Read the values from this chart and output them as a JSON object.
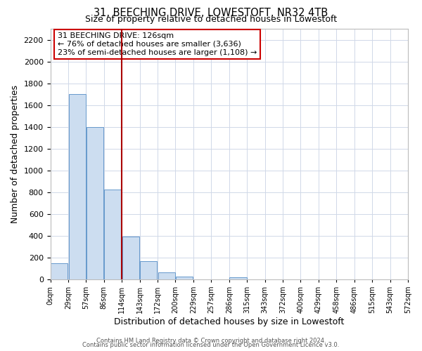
{
  "title": "31, BEECHING DRIVE, LOWESTOFT, NR32 4TB",
  "subtitle": "Size of property relative to detached houses in Lowestoft",
  "xlabel": "Distribution of detached houses by size in Lowestoft",
  "ylabel": "Number of detached properties",
  "bar_heights": [
    150,
    1700,
    1400,
    825,
    390,
    165,
    65,
    25,
    0,
    0,
    20,
    0,
    0,
    0,
    0,
    0,
    0,
    0,
    0,
    0
  ],
  "bar_color": "#ccddf0",
  "bar_edgecolor": "#6699cc",
  "tick_labels": [
    "0sqm",
    "29sqm",
    "57sqm",
    "86sqm",
    "114sqm",
    "143sqm",
    "172sqm",
    "200sqm",
    "229sqm",
    "257sqm",
    "286sqm",
    "315sqm",
    "343sqm",
    "372sqm",
    "400sqm",
    "429sqm",
    "458sqm",
    "486sqm",
    "515sqm",
    "543sqm",
    "572sqm"
  ],
  "vline_bin": 4,
  "vline_color": "#aa0000",
  "annotation_title": "31 BEECHING DRIVE: 126sqm",
  "annotation_line1": "← 76% of detached houses are smaller (3,636)",
  "annotation_line2": "23% of semi-detached houses are larger (1,108) →",
  "annotation_box_edgecolor": "#cc0000",
  "ylim": [
    0,
    2300
  ],
  "yticks": [
    0,
    200,
    400,
    600,
    800,
    1000,
    1200,
    1400,
    1600,
    1800,
    2000,
    2200
  ],
  "footer_line1": "Contains HM Land Registry data © Crown copyright and database right 2024.",
  "footer_line2": "Contains public sector information licensed under the Open Government Licence v3.0.",
  "bg_color": "#ffffff",
  "grid_color": "#d0d8e8"
}
